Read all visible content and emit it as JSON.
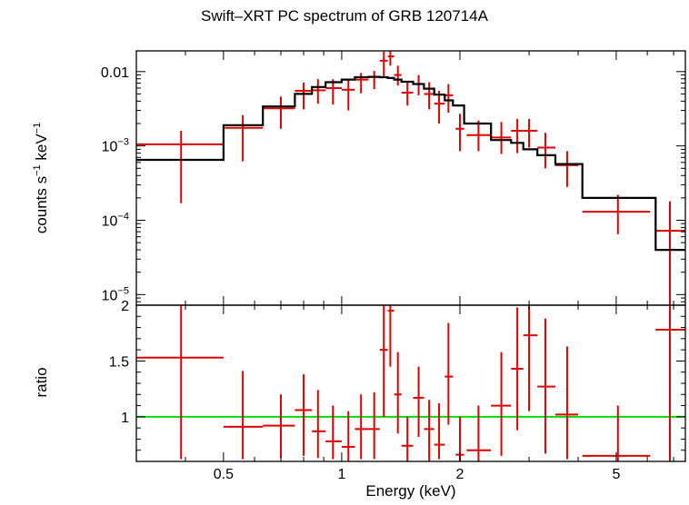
{
  "chart_data": {
    "type": "scatter",
    "title": "Swift–XRT PC spectrum of GRB 120714A",
    "xlabel": "Energy (keV)",
    "x_scale": "log",
    "xlim": [
      0.3,
      7.5
    ],
    "x_ticks": [
      {
        "value": 0.5,
        "label": "0.5"
      },
      {
        "value": 1,
        "label": "1"
      },
      {
        "value": 2,
        "label": "2"
      },
      {
        "value": 5,
        "label": "5"
      }
    ],
    "panels": [
      {
        "ylabel_base": "counts s",
        "ylabel_exp1": "−1",
        "ylabel_mid": " keV",
        "ylabel_exp2": "−1",
        "y_scale": "log",
        "ylim": [
          7.2e-06,
          0.019
        ],
        "y_ticks": [
          {
            "value": 0.01,
            "label": "0.01",
            "base": "",
            "exp": ""
          },
          {
            "value": 0.001,
            "label": "",
            "base": "10",
            "exp": "−3"
          },
          {
            "value": 0.0001,
            "label": "",
            "base": "10",
            "exp": "−4"
          },
          {
            "value": 1e-05,
            "label": "",
            "base": "10",
            "exp": "−5"
          }
        ],
        "series": [
          {
            "kind": "data",
            "color": "#e00000",
            "points": [
              {
                "x": 0.39,
                "xlo": 0.3,
                "xhi": 0.5,
                "y": 0.00105,
                "ylo": 0.00017,
                "yhi": 0.0016
              },
              {
                "x": 0.56,
                "xlo": 0.5,
                "xhi": 0.63,
                "y": 0.00175,
                "ylo": 0.00062,
                "yhi": 0.0026
              },
              {
                "x": 0.7,
                "xlo": 0.63,
                "xhi": 0.76,
                "y": 0.0032,
                "ylo": 0.0017,
                "yhi": 0.0046
              },
              {
                "x": 0.8,
                "xlo": 0.76,
                "xhi": 0.84,
                "y": 0.0055,
                "ylo": 0.0031,
                "yhi": 0.0071
              },
              {
                "x": 0.87,
                "xlo": 0.84,
                "xhi": 0.91,
                "y": 0.0056,
                "ylo": 0.0037,
                "yhi": 0.0079
              },
              {
                "x": 0.95,
                "xlo": 0.91,
                "xhi": 1.0,
                "y": 0.006,
                "ylo": 0.0036,
                "yhi": 0.0079
              },
              {
                "x": 1.04,
                "xlo": 1.0,
                "xhi": 1.08,
                "y": 0.0057,
                "ylo": 0.003,
                "yhi": 0.008
              },
              {
                "x": 1.12,
                "xlo": 1.08,
                "xhi": 1.17,
                "y": 0.0078,
                "ylo": 0.0051,
                "yhi": 0.0096
              },
              {
                "x": 1.21,
                "xlo": 1.17,
                "xhi": 1.25,
                "y": 0.0085,
                "ylo": 0.0058,
                "yhi": 0.0102
              },
              {
                "x": 1.28,
                "xlo": 1.25,
                "xhi": 1.31,
                "y": 0.014,
                "ylo": 0.0082,
                "yhi": 0.0185
              },
              {
                "x": 1.33,
                "xlo": 1.31,
                "xhi": 1.36,
                "y": 0.016,
                "ylo": 0.012,
                "yhi": 0.02
              },
              {
                "x": 1.39,
                "xlo": 1.36,
                "xhi": 1.42,
                "y": 0.009,
                "ylo": 0.0065,
                "yhi": 0.012
              },
              {
                "x": 1.47,
                "xlo": 1.42,
                "xhi": 1.52,
                "y": 0.0052,
                "ylo": 0.0035,
                "yhi": 0.0072
              },
              {
                "x": 1.57,
                "xlo": 1.52,
                "xhi": 1.62,
                "y": 0.0068,
                "ylo": 0.0048,
                "yhi": 0.009
              },
              {
                "x": 1.67,
                "xlo": 1.62,
                "xhi": 1.72,
                "y": 0.005,
                "ylo": 0.0031,
                "yhi": 0.0072
              },
              {
                "x": 1.77,
                "xlo": 1.72,
                "xhi": 1.83,
                "y": 0.0037,
                "ylo": 0.002,
                "yhi": 0.0055
              },
              {
                "x": 1.87,
                "xlo": 1.83,
                "xhi": 1.92,
                "y": 0.0048,
                "ylo": 0.0028,
                "yhi": 0.0068
              },
              {
                "x": 2.0,
                "xlo": 1.95,
                "xhi": 2.05,
                "y": 0.0017,
                "ylo": 0.00085,
                "yhi": 0.0027
              },
              {
                "x": 2.23,
                "xlo": 2.08,
                "xhi": 2.4,
                "y": 0.0014,
                "ylo": 0.00085,
                "yhi": 0.0022
              },
              {
                "x": 2.55,
                "xlo": 2.4,
                "xhi": 2.7,
                "y": 0.0013,
                "ylo": 0.00078,
                "yhi": 0.0021
              },
              {
                "x": 2.8,
                "xlo": 2.7,
                "xhi": 2.9,
                "y": 0.0016,
                "ylo": 0.0008,
                "yhi": 0.0023
              },
              {
                "x": 3.0,
                "xlo": 2.9,
                "xhi": 3.15,
                "y": 0.0016,
                "ylo": 0.00095,
                "yhi": 0.0023
              },
              {
                "x": 3.3,
                "xlo": 3.15,
                "xhi": 3.5,
                "y": 0.00095,
                "ylo": 0.0005,
                "yhi": 0.0015
              },
              {
                "x": 3.75,
                "xlo": 3.5,
                "xhi": 4.0,
                "y": 0.00055,
                "ylo": 0.00028,
                "yhi": 0.00085
              },
              {
                "x": 5.05,
                "xlo": 4.1,
                "xhi": 6.1,
                "y": 0.00013,
                "ylo": 6.5e-05,
                "yhi": 0.00022
              },
              {
                "x": 6.85,
                "xlo": 6.3,
                "xhi": 7.5,
                "y": 7.2e-05,
                "ylo": 7.2e-06,
                "yhi": 0.00018
              }
            ]
          },
          {
            "kind": "model",
            "color": "#000000",
            "steps": [
              {
                "xlo": 0.3,
                "xhi": 0.5,
                "y": 0.00065
              },
              {
                "xlo": 0.5,
                "xhi": 0.63,
                "y": 0.0019
              },
              {
                "xlo": 0.63,
                "xhi": 0.76,
                "y": 0.0034
              },
              {
                "xlo": 0.76,
                "xhi": 0.84,
                "y": 0.005
              },
              {
                "xlo": 0.84,
                "xhi": 0.91,
                "y": 0.0062
              },
              {
                "xlo": 0.91,
                "xhi": 1.0,
                "y": 0.0072
              },
              {
                "xlo": 1.0,
                "xhi": 1.08,
                "y": 0.0078
              },
              {
                "xlo": 1.08,
                "xhi": 1.17,
                "y": 0.0084
              },
              {
                "xlo": 1.17,
                "xhi": 1.25,
                "y": 0.0085
              },
              {
                "xlo": 1.25,
                "xhi": 1.31,
                "y": 0.0084
              },
              {
                "xlo": 1.31,
                "xhi": 1.36,
                "y": 0.0082
              },
              {
                "xlo": 1.36,
                "xhi": 1.42,
                "y": 0.0078
              },
              {
                "xlo": 1.42,
                "xhi": 1.52,
                "y": 0.0073
              },
              {
                "xlo": 1.52,
                "xhi": 1.62,
                "y": 0.0068
              },
              {
                "xlo": 1.62,
                "xhi": 1.72,
                "y": 0.0059
              },
              {
                "xlo": 1.72,
                "xhi": 1.83,
                "y": 0.0049
              },
              {
                "xlo": 1.83,
                "xhi": 1.92,
                "y": 0.0041
              },
              {
                "xlo": 1.92,
                "xhi": 2.05,
                "y": 0.0035
              },
              {
                "xlo": 2.05,
                "xhi": 2.4,
                "y": 0.002
              },
              {
                "xlo": 2.4,
                "xhi": 2.7,
                "y": 0.0012
              },
              {
                "xlo": 2.7,
                "xhi": 2.9,
                "y": 0.0011
              },
              {
                "xlo": 2.9,
                "xhi": 3.15,
                "y": 0.0009
              },
              {
                "xlo": 3.15,
                "xhi": 3.5,
                "y": 0.00075
              },
              {
                "xlo": 3.5,
                "xhi": 4.1,
                "y": 0.00057
              },
              {
                "xlo": 4.1,
                "xhi": 6.3,
                "y": 0.0002
              },
              {
                "xlo": 6.3,
                "xhi": 7.5,
                "y": 4e-05
              }
            ]
          }
        ]
      },
      {
        "ylabel": "ratio",
        "y_scale": "linear",
        "ylim": [
          0.6,
          2.0
        ],
        "y_ticks": [
          {
            "value": 2,
            "label": "2"
          },
          {
            "value": 1.5,
            "label": "1.5"
          },
          {
            "value": 1,
            "label": "1"
          }
        ],
        "reference_line": {
          "y": 1,
          "color": "#00dd00"
        },
        "series": [
          {
            "kind": "data",
            "color": "#e00000",
            "points": [
              {
                "x": 0.39,
                "xlo": 0.3,
                "xhi": 0.5,
                "y": 1.53,
                "ylo": 0.62,
                "yhi": 2.0
              },
              {
                "x": 0.56,
                "xlo": 0.5,
                "xhi": 0.63,
                "y": 0.91,
                "ylo": 0.62,
                "yhi": 1.41
              },
              {
                "x": 0.7,
                "xlo": 0.63,
                "xhi": 0.76,
                "y": 0.92,
                "ylo": 0.63,
                "yhi": 1.2
              },
              {
                "x": 0.8,
                "xlo": 0.76,
                "xhi": 0.84,
                "y": 1.06,
                "ylo": 0.65,
                "yhi": 1.38
              },
              {
                "x": 0.87,
                "xlo": 0.84,
                "xhi": 0.91,
                "y": 0.87,
                "ylo": 0.63,
                "yhi": 1.24
              },
              {
                "x": 0.95,
                "xlo": 0.91,
                "xhi": 1.0,
                "y": 0.78,
                "ylo": 0.62,
                "yhi": 1.1
              },
              {
                "x": 1.04,
                "xlo": 1.0,
                "xhi": 1.08,
                "y": 0.73,
                "ylo": 0.6,
                "yhi": 1.05
              },
              {
                "x": 1.12,
                "xlo": 1.08,
                "xhi": 1.17,
                "y": 0.89,
                "ylo": 0.62,
                "yhi": 1.2
              },
              {
                "x": 1.21,
                "xlo": 1.17,
                "xhi": 1.25,
                "y": 0.89,
                "ylo": 0.62,
                "yhi": 1.22
              },
              {
                "x": 1.28,
                "xlo": 1.25,
                "xhi": 1.31,
                "y": 1.6,
                "ylo": 1.0,
                "yhi": 2.0
              },
              {
                "x": 1.33,
                "xlo": 1.31,
                "xhi": 1.36,
                "y": 1.95,
                "ylo": 1.45,
                "yhi": 2.0
              },
              {
                "x": 1.39,
                "xlo": 1.36,
                "xhi": 1.42,
                "y": 1.2,
                "ylo": 0.85,
                "yhi": 1.58
              },
              {
                "x": 1.47,
                "xlo": 1.42,
                "xhi": 1.52,
                "y": 0.74,
                "ylo": 0.6,
                "yhi": 1.0
              },
              {
                "x": 1.57,
                "xlo": 1.52,
                "xhi": 1.62,
                "y": 1.17,
                "ylo": 0.82,
                "yhi": 1.45
              },
              {
                "x": 1.67,
                "xlo": 1.62,
                "xhi": 1.72,
                "y": 0.89,
                "ylo": 0.6,
                "yhi": 1.15
              },
              {
                "x": 1.77,
                "xlo": 1.72,
                "xhi": 1.83,
                "y": 0.75,
                "ylo": 0.62,
                "yhi": 1.12
              },
              {
                "x": 1.87,
                "xlo": 1.83,
                "xhi": 1.92,
                "y": 1.36,
                "ylo": 0.93,
                "yhi": 1.84
              },
              {
                "x": 2.0,
                "xlo": 1.95,
                "xhi": 2.05,
                "y": 0.66,
                "ylo": 0.6,
                "yhi": 1.0
              },
              {
                "x": 2.23,
                "xlo": 2.08,
                "xhi": 2.4,
                "y": 0.7,
                "ylo": 0.6,
                "yhi": 1.1
              },
              {
                "x": 2.55,
                "xlo": 2.4,
                "xhi": 2.7,
                "y": 1.1,
                "ylo": 0.65,
                "yhi": 1.58
              },
              {
                "x": 2.8,
                "xlo": 2.7,
                "xhi": 2.9,
                "y": 1.43,
                "ylo": 0.88,
                "yhi": 1.98
              },
              {
                "x": 3.0,
                "xlo": 2.9,
                "xhi": 3.15,
                "y": 1.73,
                "ylo": 1.05,
                "yhi": 2.0
              },
              {
                "x": 3.3,
                "xlo": 3.15,
                "xhi": 3.5,
                "y": 1.27,
                "ylo": 0.67,
                "yhi": 1.88
              },
              {
                "x": 3.75,
                "xlo": 3.5,
                "xhi": 4.0,
                "y": 1.02,
                "ylo": 0.62,
                "yhi": 1.63
              },
              {
                "x": 5.05,
                "xlo": 4.1,
                "xhi": 6.1,
                "y": 0.65,
                "ylo": 0.6,
                "yhi": 1.1
              },
              {
                "x": 6.85,
                "xlo": 6.3,
                "xhi": 7.5,
                "y": 1.78,
                "ylo": 0.6,
                "yhi": 2.0
              }
            ]
          }
        ]
      }
    ]
  }
}
